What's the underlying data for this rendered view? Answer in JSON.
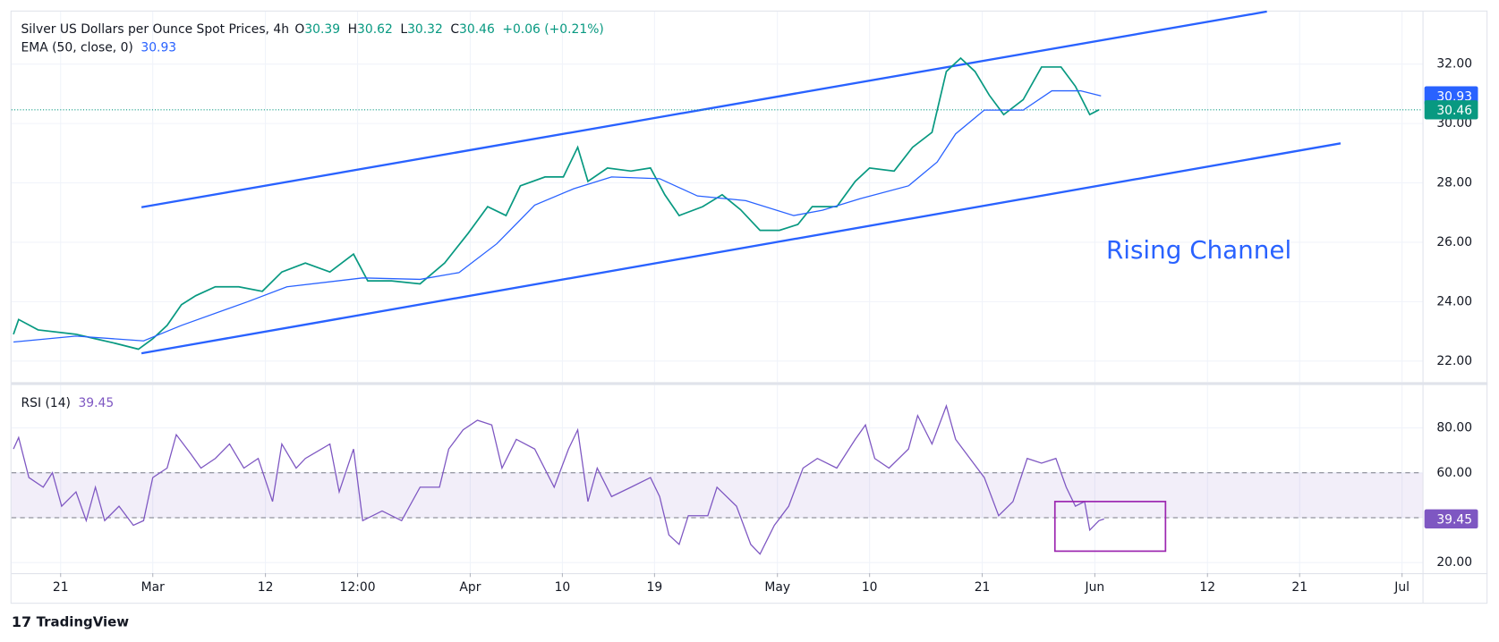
{
  "chart_data": [
    {
      "type": "line",
      "grid": true,
      "series": [
        {
          "name": "Silver US Dollars per Ounce Spot Prices, 4h",
          "color": "#089981",
          "x": [
            47.4,
            47.9,
            49.8,
            53.5,
            55.4,
            57.3,
            59.6,
            61,
            62.4,
            63.8,
            65.2,
            67.1,
            69.4,
            71.7,
            73.6,
            75.9,
            78.3,
            80.6,
            82,
            84.3,
            87.1,
            89.5,
            91.8,
            93.7,
            95.5,
            96.9,
            99.3,
            101.1,
            102.5,
            103.5,
            105.4,
            107.7,
            109.6,
            111,
            112.4,
            114.7,
            116.6,
            118.4,
            120.3,
            122.2,
            124,
            125.4,
            127.8,
            129.6,
            131,
            133.4,
            135.2,
            137.1,
            138.5,
            139.9,
            141.3,
            142.7,
            144.1,
            146,
            147.8,
            149.7,
            151.1,
            152.5,
            153.4
          ],
          "values": [
            22.9,
            23.4,
            23.05,
            22.9,
            22.75,
            22.6,
            22.4,
            22.75,
            23.2,
            23.9,
            24.2,
            24.5,
            24.5,
            24.35,
            25.0,
            25.3,
            25.0,
            25.6,
            24.7,
            24.7,
            24.6,
            25.3,
            26.3,
            27.2,
            26.9,
            27.9,
            28.2,
            28.2,
            29.2,
            28.05,
            28.5,
            28.4,
            28.5,
            27.6,
            26.9,
            27.2,
            27.6,
            27.1,
            26.4,
            26.4,
            26.6,
            27.2,
            27.2,
            28.05,
            28.5,
            28.4,
            29.2,
            29.7,
            31.75,
            32.2,
            31.75,
            30.95,
            30.3,
            30.8,
            31.9,
            31.9,
            31.25,
            30.3,
            30.46
          ]
        },
        {
          "name": "EMA (50, close, 0)",
          "color": "#2962ff",
          "last_value": 30.93,
          "x": [
            47.4,
            53.5,
            60.1,
            63.8,
            70.3,
            74.1,
            81.5,
            87.1,
            90.9,
            94.6,
            98.3,
            102.1,
            105.8,
            110.5,
            114.2,
            118.9,
            123.6,
            126.4,
            130.1,
            134.8,
            137.6,
            139.4,
            142.2,
            146,
            148.8,
            151.6,
            153.6
          ],
          "values": [
            22.64,
            22.84,
            22.68,
            23.2,
            24.0,
            24.5,
            24.8,
            24.75,
            24.98,
            25.95,
            27.25,
            27.8,
            28.2,
            28.14,
            27.56,
            27.4,
            26.9,
            27.08,
            27.47,
            27.9,
            28.7,
            29.65,
            30.45,
            30.45,
            31.1,
            31.1,
            30.93
          ]
        }
      ],
      "ohlc_letters": [
        "O",
        "H",
        "L",
        "C"
      ],
      "open": 30.39,
      "high": 30.62,
      "low": 30.32,
      "close": 30.46,
      "change_label": "+0.06 (+0.21%)",
      "channel": [
        {
          "color": "#2962ff",
          "x": [
            59.9,
            169.8
          ],
          "values": [
            27.18,
            33.77
          ]
        },
        {
          "color": "#2962ff",
          "x": [
            59.9,
            177
          ],
          "values": [
            22.26,
            29.33
          ]
        }
      ],
      "annotation": "Rising Channel",
      "xlim": [
        47.2,
        185
      ],
      "ylim": [
        21.29,
        33.77
      ],
      "yticks": [
        {
          "value": 22,
          "label": "22.00"
        },
        {
          "value": 24,
          "label": "24.00"
        },
        {
          "value": 26,
          "label": "26.00"
        },
        {
          "value": 28,
          "label": "28.00"
        },
        {
          "value": 30,
          "label": "30.00"
        },
        {
          "value": 32,
          "label": "32.00"
        }
      ]
    },
    {
      "type": "line",
      "grid": true,
      "series": [
        {
          "name": "RSI (14)",
          "color": "#7e57c2",
          "last_value": 39.45,
          "x": [
            47.4,
            47.9,
            48.9,
            50.3,
            51.2,
            52.1,
            53.5,
            54.5,
            55.4,
            56.3,
            57.7,
            59.1,
            60.1,
            61,
            62.4,
            63.3,
            64.7,
            65.7,
            67.1,
            68.5,
            69.9,
            71.3,
            72.7,
            73.6,
            75,
            75.9,
            78.3,
            79.2,
            80.6,
            81.5,
            83.4,
            85.3,
            87.1,
            89,
            89.9,
            91.3,
            92.7,
            94.1,
            95.1,
            96.5,
            98.3,
            100.2,
            101.6,
            102.5,
            103.5,
            104.4,
            105.8,
            107.7,
            109.6,
            110.5,
            111.4,
            112.4,
            113.3,
            115.2,
            116.1,
            118,
            119.4,
            120.3,
            121.7,
            123.1,
            124.5,
            125.9,
            127.8,
            129.6,
            130.6,
            131.5,
            132.9,
            134.8,
            135.7,
            137.1,
            138.5,
            139.4,
            140.8,
            142.2,
            143.6,
            145,
            146.4,
            147.8,
            149.2,
            150.2,
            151.1,
            152,
            152.5,
            153.4,
            153.9
          ],
          "values": [
            70.6,
            75.7,
            57.9,
            53.6,
            60,
            45.1,
            51.5,
            38.7,
            53.6,
            38.7,
            45.1,
            36.6,
            38.7,
            57.9,
            62.1,
            77,
            68.5,
            62.1,
            66.4,
            72.8,
            62.1,
            66.4,
            47.2,
            72.8,
            62.1,
            66.4,
            72.8,
            51.5,
            70.6,
            38.7,
            43,
            38.7,
            53.6,
            53.6,
            70.6,
            79.1,
            83.4,
            81.3,
            62.1,
            74.9,
            70.6,
            53.6,
            70.6,
            79.1,
            47.2,
            62.1,
            49.4,
            53.6,
            57.9,
            49.4,
            32.3,
            28.1,
            40.9,
            40.9,
            53.6,
            45.1,
            28.1,
            23.8,
            36.6,
            45.1,
            62.1,
            66.4,
            62.1,
            74.9,
            81.3,
            66.4,
            62.1,
            70.6,
            85.5,
            72.8,
            89.8,
            74.9,
            66.4,
            57.9,
            40.9,
            47.2,
            66.4,
            64.3,
            66.4,
            53.6,
            45.1,
            47.2,
            34.5,
            38.7,
            39.45
          ]
        }
      ],
      "band": [
        40,
        60
      ],
      "highlight_box": {
        "color": "#9c27b0",
        "x": [
          149.1,
          159.9
        ],
        "y": [
          25.1,
          47.2
        ]
      },
      "xlim": [
        47.2,
        185
      ],
      "ylim": [
        15.3,
        99.1
      ],
      "yticks": [
        {
          "value": 20,
          "label": "20.00"
        },
        {
          "value": 40,
          "label": "40.00"
        },
        {
          "value": 60,
          "label": "60.00"
        },
        {
          "value": 80,
          "label": "80.00"
        }
      ],
      "xticks": [
        {
          "value": 52,
          "label": "21"
        },
        {
          "value": 61,
          "label": "Mar"
        },
        {
          "value": 72,
          "label": "12"
        },
        {
          "value": 81,
          "label": "12:00"
        },
        {
          "value": 92,
          "label": "Apr"
        },
        {
          "value": 101,
          "label": "10"
        },
        {
          "value": 110,
          "label": "19"
        },
        {
          "value": 122,
          "label": "May"
        },
        {
          "value": 131,
          "label": "10"
        },
        {
          "value": 142,
          "label": "21"
        },
        {
          "value": 153,
          "label": "Jun"
        },
        {
          "value": 164,
          "label": "12"
        },
        {
          "value": 173,
          "label": "21"
        },
        {
          "value": 183,
          "label": "Jul"
        }
      ]
    }
  ],
  "footer": {
    "logo": "TradingView"
  }
}
